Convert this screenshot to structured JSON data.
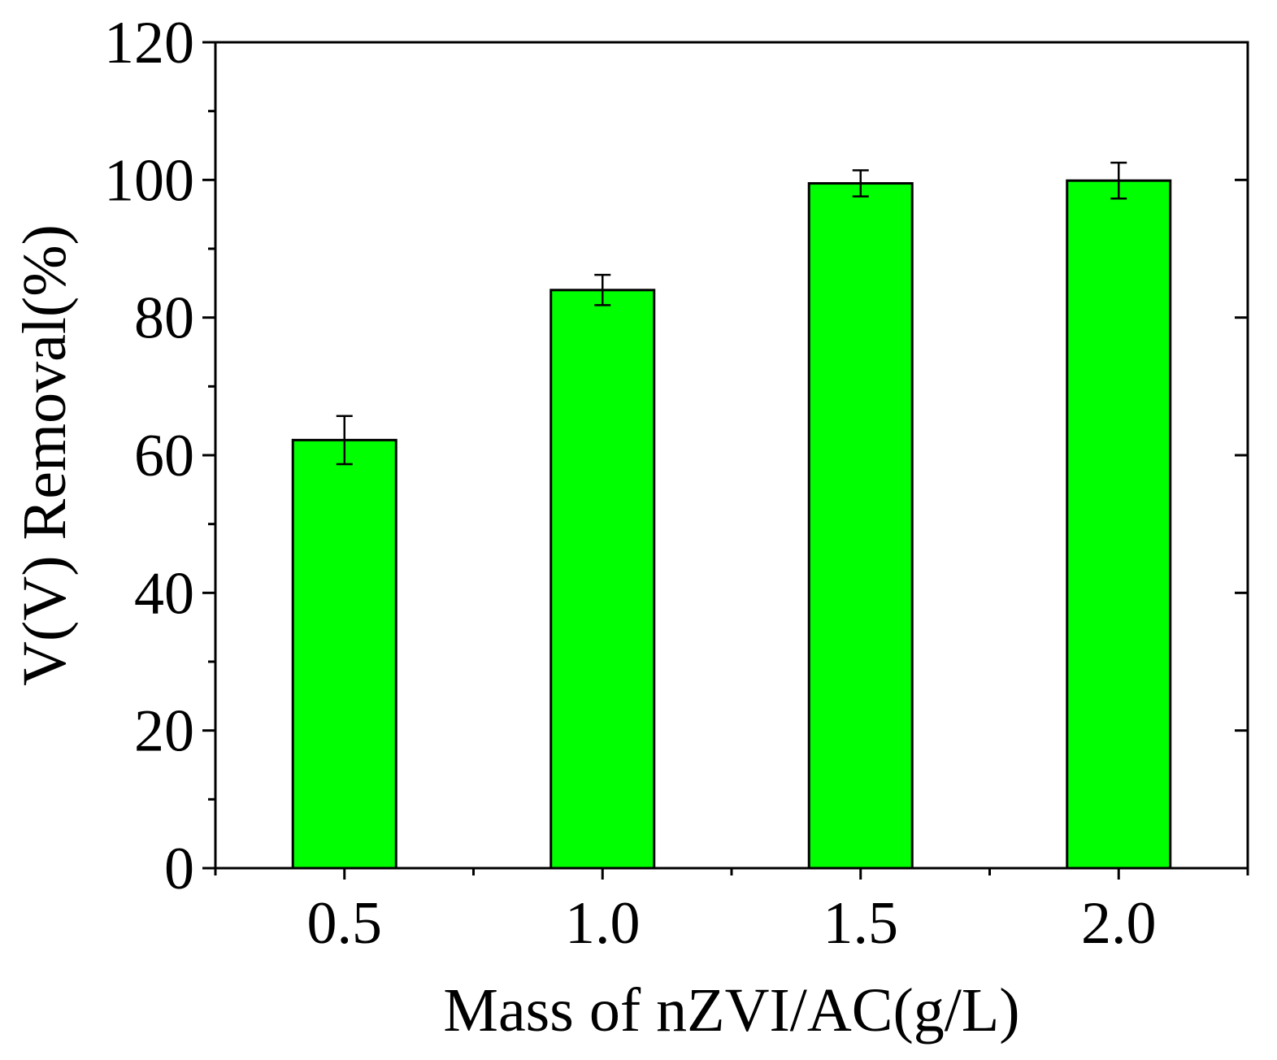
{
  "chart_data": {
    "type": "bar",
    "title": "",
    "xlabel": "Mass of nZVI/AC(g/L)",
    "ylabel": "V(V) Removal(%)",
    "categories": [
      "0.5",
      "1.0",
      "1.5",
      "2.0"
    ],
    "values": [
      62.2,
      84.0,
      99.5,
      99.9
    ],
    "errors": [
      3.5,
      2.2,
      1.9,
      2.6
    ],
    "ylim": [
      0,
      120
    ],
    "yticks": [
      "0",
      "20",
      "40",
      "60",
      "80",
      "100",
      "120"
    ],
    "ytick_values": [
      0,
      20,
      40,
      60,
      80,
      100,
      120
    ],
    "yminor_step": 10,
    "grid": false,
    "legend": "none",
    "colors": {
      "bar_fill": "#00FF00",
      "bar_stroke": "#000000",
      "axis": "#000000",
      "background": "#FFFFFF"
    }
  }
}
